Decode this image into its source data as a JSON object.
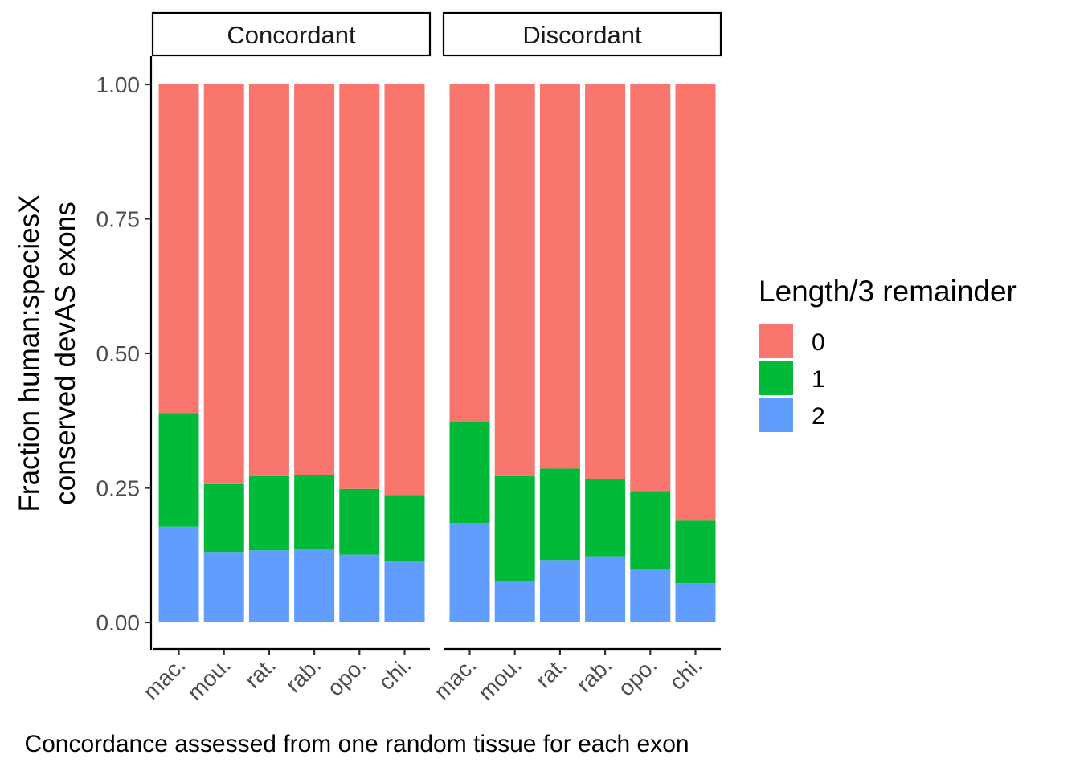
{
  "chart_data": {
    "type": "bar",
    "stacked": true,
    "ylabel_lines": [
      "Fraction human:speciesX",
      "conserved devAS exons"
    ],
    "xlabel": "Concordance assessed from one random tissue for each exon",
    "ylim": [
      0,
      1
    ],
    "yticks": [
      "0.00",
      "0.25",
      "0.50",
      "0.75",
      "1.00"
    ],
    "legend": {
      "title": "Length/3 remainder",
      "placement": "right",
      "entries": [
        {
          "label": "0",
          "color": "#F8766D"
        },
        {
          "label": "1",
          "color": "#00BA38"
        },
        {
          "label": "2",
          "color": "#619CFF"
        }
      ]
    },
    "categories": [
      "mac.",
      "mou.",
      "rat.",
      "rab.",
      "opo.",
      "chi."
    ],
    "facets": [
      {
        "name": "Concordant",
        "series": [
          {
            "name": "2",
            "values": [
              0.178,
              0.131,
              0.134,
              0.136,
              0.126,
              0.114
            ]
          },
          {
            "name": "1",
            "values": [
              0.211,
              0.126,
              0.138,
              0.138,
              0.122,
              0.123
            ]
          },
          {
            "name": "0",
            "values": [
              0.611,
              0.743,
              0.728,
              0.726,
              0.752,
              0.763
            ]
          }
        ]
      },
      {
        "name": "Discordant",
        "series": [
          {
            "name": "2",
            "values": [
              0.185,
              0.077,
              0.116,
              0.123,
              0.098,
              0.073
            ]
          },
          {
            "name": "1",
            "values": [
              0.187,
              0.195,
              0.17,
              0.143,
              0.146,
              0.116
            ]
          },
          {
            "name": "0",
            "values": [
              0.628,
              0.728,
              0.714,
              0.734,
              0.756,
              0.811
            ]
          }
        ]
      }
    ]
  }
}
